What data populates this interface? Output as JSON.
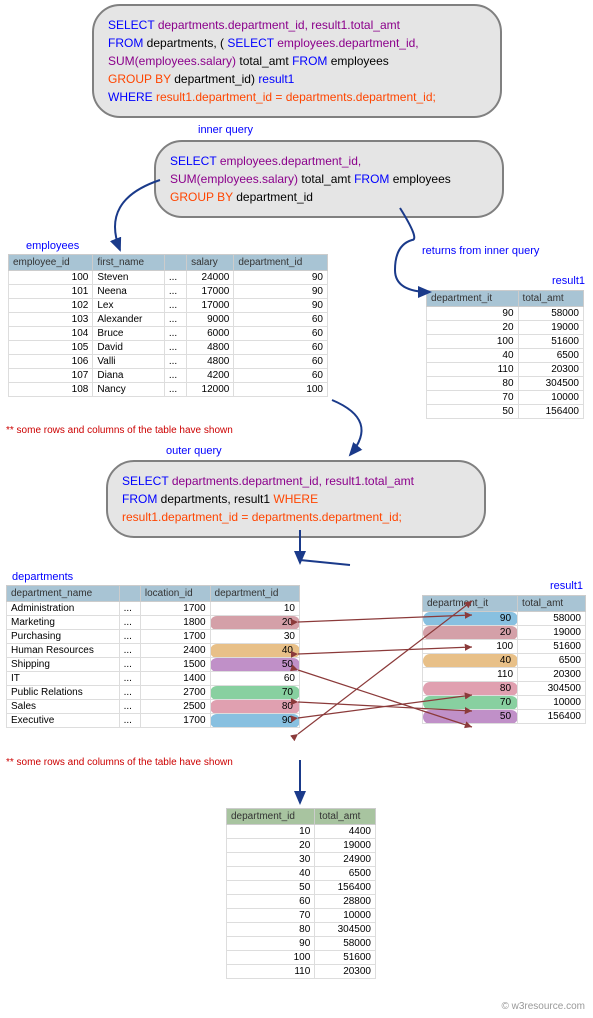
{
  "main_query": {
    "l1": {
      "select": "SELECT ",
      "f1": "departments.department_id, result1.total_amt"
    },
    "l2": {
      "from": "FROM ",
      "t1": "departments, ",
      "p": " ( ",
      "select": "SELECT ",
      "f2": "employees.department_id,"
    },
    "l3": {
      "f1": "SUM(employees.salary) ",
      "alias": "total_amt ",
      "from": " FROM ",
      "t": "employees"
    },
    "l4": {
      "grp": "GROUP BY ",
      "f": "department_id",
      "p": ") ",
      "alias": "result1"
    },
    "l5": {
      "where": "WHERE ",
      "cond": "result1.department_id = departments.department_id;"
    }
  },
  "inner_label": "inner query",
  "inner_query": {
    "l1": {
      "select": "SELECT ",
      "f": "employees.department_id,"
    },
    "l2": {
      "f1": "SUM(employees.salary) ",
      "alias": "total_amt ",
      "from": " FROM ",
      "t": "employees"
    },
    "l3": {
      "grp": "GROUP BY ",
      "f": "department_id"
    }
  },
  "emp_label": "employees",
  "emp": {
    "cols": [
      "employee_id",
      "first_name",
      "",
      "salary",
      "department_id"
    ],
    "rows": [
      [
        "100",
        "Steven",
        "...",
        "24000",
        "90"
      ],
      [
        "101",
        "Neena",
        "...",
        "17000",
        "90"
      ],
      [
        "102",
        "Lex",
        "...",
        "17000",
        "90"
      ],
      [
        "103",
        "Alexander",
        "...",
        "9000",
        "60"
      ],
      [
        "104",
        "Bruce",
        "...",
        "6000",
        "60"
      ],
      [
        "105",
        "David",
        "...",
        "4800",
        "60"
      ],
      [
        "106",
        "Valli",
        "...",
        "4800",
        "60"
      ],
      [
        "107",
        "Diana",
        "...",
        "4200",
        "60"
      ],
      [
        "108",
        "Nancy",
        "...",
        "12000",
        "100"
      ]
    ]
  },
  "note1": "** some rows and columns of the table have shown",
  "returns_label": "returns from inner query",
  "res1_label": "result1",
  "res1": {
    "cols": [
      "department_it",
      "total_amt"
    ],
    "rows": [
      [
        "90",
        "58000"
      ],
      [
        "20",
        "19000"
      ],
      [
        "100",
        "51600"
      ],
      [
        "40",
        "6500"
      ],
      [
        "110",
        "20300"
      ],
      [
        "80",
        "304500"
      ],
      [
        "70",
        "10000"
      ],
      [
        "50",
        "156400"
      ]
    ]
  },
  "outer_label": "outer query",
  "outer_query": {
    "l1": {
      "select": "SELECT ",
      "f": "departments.department_id, result1.total_amt"
    },
    "l2": {
      "from": "FROM ",
      "t": "departments, result1 ",
      "where": "WHERE"
    },
    "l3": {
      "cond": "result1.department_id = departments.department_id;"
    }
  },
  "dept_label": "departments",
  "dept": {
    "cols": [
      "department_name",
      "",
      "location_id",
      "department_id"
    ],
    "rows": [
      [
        "Administration",
        "...",
        "1700",
        "10",
        ""
      ],
      [
        "Marketing",
        "...",
        "1800",
        "20",
        "c-pink"
      ],
      [
        "Purchasing",
        "...",
        "1700",
        "30",
        ""
      ],
      [
        "Human Resources",
        "...",
        "2400",
        "40",
        "c-orange"
      ],
      [
        "Shipping",
        "...",
        "1500",
        "50",
        "c-purple"
      ],
      [
        "IT",
        "...",
        "1400",
        "60",
        ""
      ],
      [
        "Public Relations",
        "...",
        "2700",
        "70",
        "c-green"
      ],
      [
        "Sales",
        "...",
        "2500",
        "80",
        "c-rose"
      ],
      [
        "Executive",
        "...",
        "1700",
        "90",
        "c-blue"
      ]
    ]
  },
  "note2": "** some rows and columns of the table have shown",
  "res2_label": "result1",
  "res2": {
    "cols": [
      "department_it",
      "total_amt"
    ],
    "rows": [
      [
        "90",
        "58000",
        "c-blue",
        ""
      ],
      [
        "20",
        "19000",
        "c-pink",
        ""
      ],
      [
        "100",
        "51600",
        "",
        ""
      ],
      [
        "40",
        "6500",
        "c-orange",
        ""
      ],
      [
        "110",
        "20300",
        "",
        ""
      ],
      [
        "80",
        "304500",
        "c-rose",
        ""
      ],
      [
        "70",
        "10000",
        "c-green",
        ""
      ],
      [
        "50",
        "156400",
        "c-purple",
        ""
      ]
    ]
  },
  "final": {
    "cols": [
      "department_id",
      "total_amt"
    ],
    "rows": [
      [
        "10",
        "4400"
      ],
      [
        "20",
        "19000"
      ],
      [
        "30",
        "24900"
      ],
      [
        "40",
        "6500"
      ],
      [
        "50",
        "156400"
      ],
      [
        "60",
        "28800"
      ],
      [
        "70",
        "10000"
      ],
      [
        "80",
        "304500"
      ],
      [
        "90",
        "58000"
      ],
      [
        "100",
        "51600"
      ],
      [
        "110",
        "20300"
      ]
    ]
  },
  "credit": "© w3resource.com",
  "arrows": {
    "stroke": "#1a3a8a",
    "fill": "#1a3a8a"
  },
  "join_lines": {
    "stroke": "#8b3a3a"
  }
}
